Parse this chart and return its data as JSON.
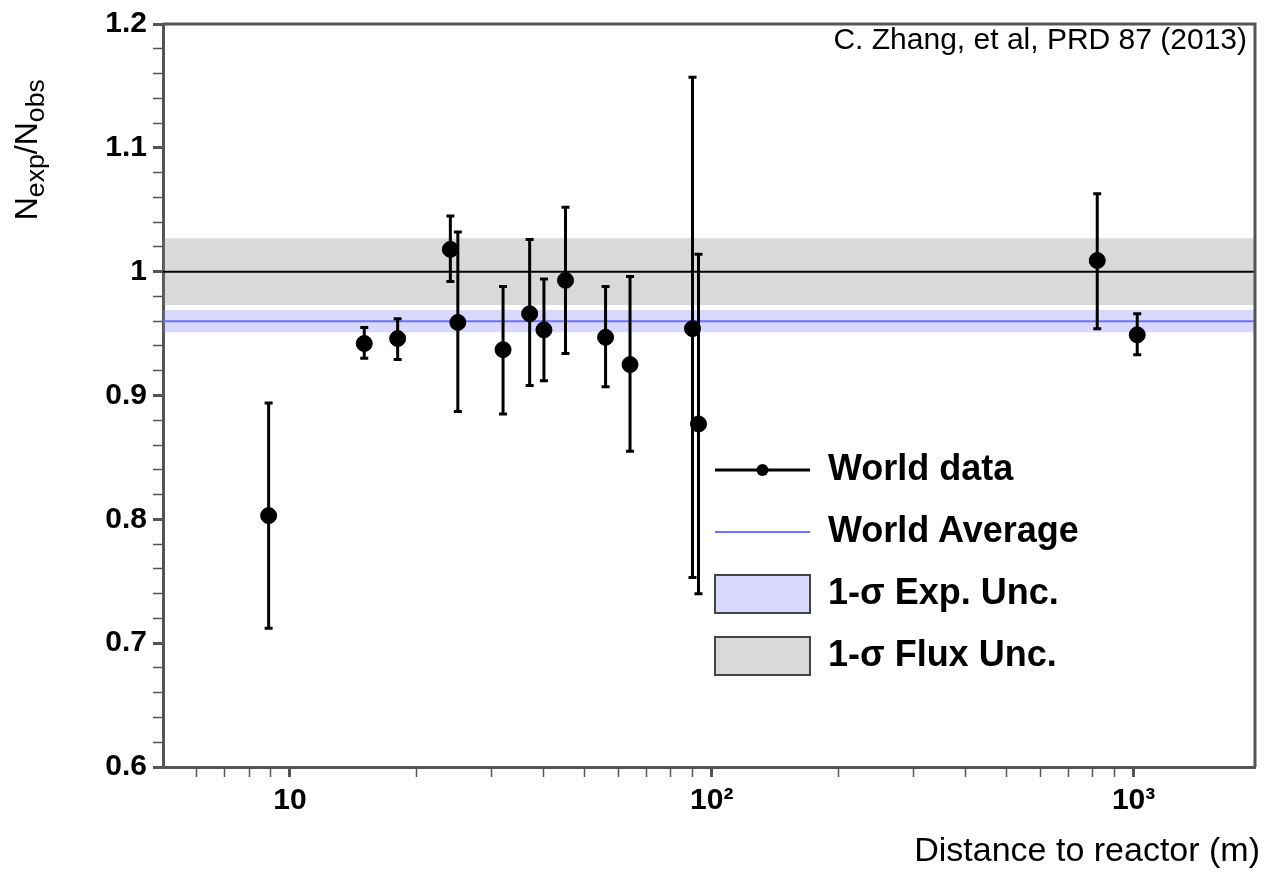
{
  "chart_data": {
    "type": "scatter",
    "xlabel": "Distance to reactor (m)",
    "ylabel": "N$_{exp}$/N$_{obs}$",
    "annotations": [
      "C. Zhang, et al, PRD 87 (2013)"
    ],
    "log": "x",
    "grid": false,
    "legend": "bottom right",
    "marker": "circle",
    "xlim": [
      5,
      1940
    ],
    "ylim": [
      0.6,
      1.2
    ],
    "xticks": [
      {
        "value": 6,
        "label": null
      },
      {
        "value": 7,
        "label": null
      },
      {
        "value": 8,
        "label": null
      },
      {
        "value": 9,
        "label": null
      },
      10,
      {
        "value": 20,
        "label": null
      },
      {
        "value": 30,
        "label": null
      },
      {
        "value": 40,
        "label": null
      },
      {
        "value": 50,
        "label": null
      },
      {
        "value": 60,
        "label": null
      },
      {
        "value": 70,
        "label": null
      },
      {
        "value": 80,
        "label": null
      },
      {
        "value": 90,
        "label": null
      },
      {
        "value": 100,
        "label": "10²"
      },
      {
        "value": 200,
        "label": null
      },
      {
        "value": 300,
        "label": null
      },
      {
        "value": 400,
        "label": null
      },
      {
        "value": 500,
        "label": null
      },
      {
        "value": 600,
        "label": null
      },
      {
        "value": 700,
        "label": null
      },
      {
        "value": 800,
        "label": null
      },
      {
        "value": 900,
        "label": null
      },
      {
        "value": 1000,
        "label": "10³"
      }
    ],
    "yticks": [
      0.6,
      {
        "value": 0.62,
        "label": null
      },
      {
        "value": 0.64,
        "label": null
      },
      {
        "value": 0.66,
        "label": null
      },
      {
        "value": 0.68,
        "label": null
      },
      0.7,
      {
        "value": 0.72,
        "label": null
      },
      {
        "value": 0.74,
        "label": null
      },
      {
        "value": 0.76,
        "label": null
      },
      {
        "value": 0.78,
        "label": null
      },
      0.8,
      {
        "value": 0.82,
        "label": null
      },
      {
        "value": 0.84,
        "label": null
      },
      {
        "value": 0.86,
        "label": null
      },
      {
        "value": 0.88,
        "label": null
      },
      0.9,
      {
        "value": 0.92,
        "label": null
      },
      {
        "value": 0.94,
        "label": null
      },
      {
        "value": 0.96,
        "label": null
      },
      {
        "value": 0.98,
        "label": null
      },
      1,
      {
        "value": 1.02,
        "label": null
      },
      {
        "value": 1.04,
        "label": null
      },
      {
        "value": 1.06,
        "label": null
      },
      {
        "value": 1.08,
        "label": null
      },
      1.1,
      {
        "value": 1.12,
        "label": null
      },
      {
        "value": 1.14,
        "label": null
      },
      {
        "value": 1.16,
        "label": null
      },
      {
        "value": 1.18,
        "label": null
      },
      1.2
    ],
    "ref_lines": [
      {
        "axis": "y",
        "value": 1,
        "color": "#000000"
      },
      {
        "axis": "y",
        "value": 0.96,
        "label": "World Average",
        "color": "#6f6fff"
      }
    ],
    "bands": [
      {
        "axis": "y",
        "from": 0.951,
        "to": 0.969,
        "label": "1-σ Exp. Unc.",
        "color": "#8080ff"
      },
      {
        "axis": "y",
        "from": 0.973,
        "to": 1.027,
        "label": "1-σ Flux Unc.",
        "color": "#808080"
      }
    ],
    "series": [
      {
        "name": "World data",
        "color": "#000000",
        "x": [
          8.9,
          15,
          18,
          24,
          25,
          32,
          37,
          40,
          45,
          56,
          64,
          90,
          93,
          820,
          1020
        ],
        "values": [
          0.803,
          0.942,
          0.946,
          1.018,
          0.959,
          0.937,
          0.966,
          0.953,
          0.993,
          0.947,
          0.925,
          0.954,
          0.877,
          1.009,
          0.949
        ],
        "errors": [
          [
            0.712,
            0.894
          ],
          [
            0.93,
            0.955
          ],
          [
            0.929,
            0.962
          ],
          [
            0.992,
            1.045
          ],
          [
            0.887,
            1.032
          ],
          [
            0.885,
            0.988
          ],
          [
            0.908,
            1.026
          ],
          [
            0.912,
            0.994
          ],
          [
            0.934,
            1.052
          ],
          [
            0.907,
            0.988
          ],
          [
            0.855,
            0.996
          ],
          [
            0.753,
            1.157
          ],
          [
            0.74,
            1.014
          ],
          [
            0.954,
            1.063
          ],
          [
            0.933,
            0.966
          ]
        ]
      }
    ]
  }
}
